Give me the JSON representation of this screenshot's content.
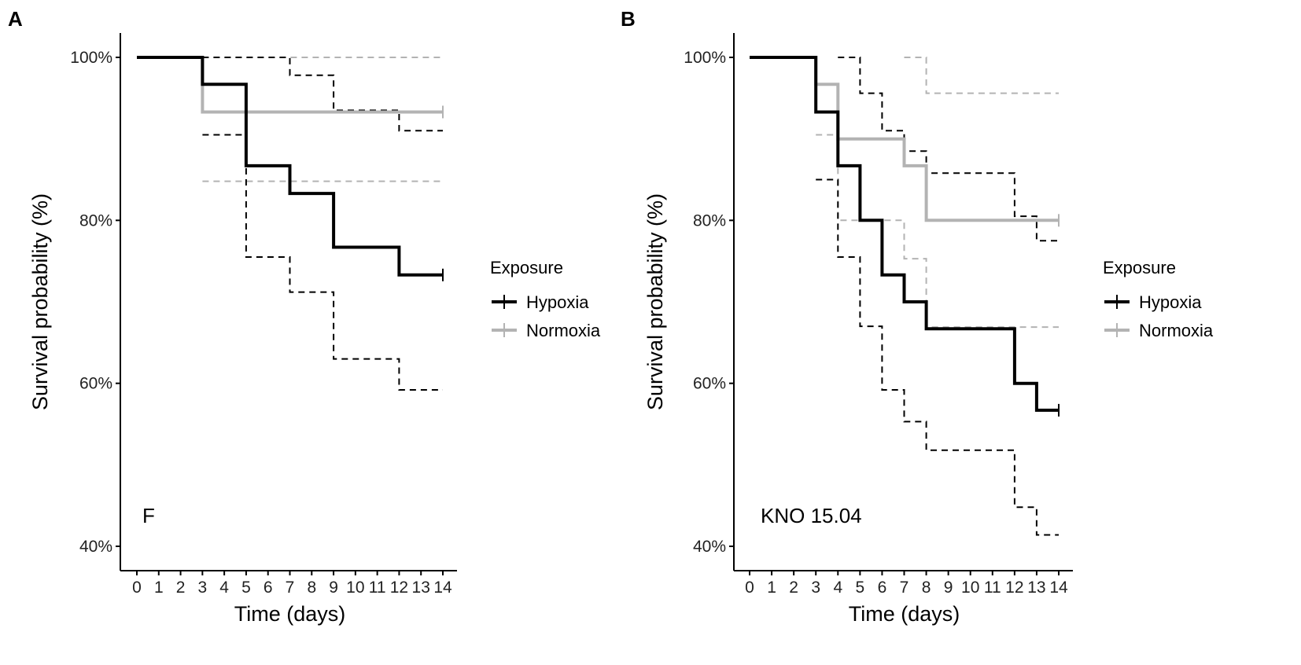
{
  "figure": {
    "colors": {
      "hypoxia": "#000000",
      "normoxia": "#b3b3b3",
      "axis": "#000000",
      "background": "#ffffff"
    }
  },
  "chart_data": [
    {
      "panel": "A",
      "type": "line",
      "subtype": "kaplan-meier step",
      "annotation": "F",
      "xlabel": "Time (days)",
      "ylabel": "Survival probability (%)",
      "xlim": [
        0,
        14
      ],
      "ylim": [
        40,
        100
      ],
      "xticks": [
        0,
        1,
        2,
        3,
        4,
        5,
        6,
        7,
        8,
        9,
        10,
        11,
        12,
        13,
        14
      ],
      "yticks": [
        40,
        60,
        80,
        100
      ],
      "ytick_labels": [
        "40%",
        "60%",
        "80%",
        "100%"
      ],
      "grid": false,
      "legend": {
        "title": "Exposure",
        "position": "right",
        "entries": [
          "Hypoxia",
          "Normoxia"
        ]
      },
      "series": [
        {
          "name": "Hypoxia",
          "color_key": "hypoxia",
          "estimate": [
            [
              0,
              100
            ],
            [
              3,
              100
            ],
            [
              3,
              96.7
            ],
            [
              5,
              96.7
            ],
            [
              5,
              86.7
            ],
            [
              7,
              86.7
            ],
            [
              7,
              83.3
            ],
            [
              9,
              83.3
            ],
            [
              9,
              76.7
            ],
            [
              12,
              76.7
            ],
            [
              12,
              73.3
            ],
            [
              14,
              73.3
            ]
          ],
          "ci_upper": [
            [
              3,
              100
            ],
            [
              7,
              100
            ],
            [
              7,
              97.8
            ],
            [
              9,
              97.8
            ],
            [
              9,
              93.5
            ],
            [
              12,
              93.5
            ],
            [
              12,
              91.0
            ],
            [
              14,
              91.0
            ]
          ],
          "ci_lower": [
            [
              3,
              90.5
            ],
            [
              5,
              90.5
            ],
            [
              5,
              75.5
            ],
            [
              7,
              75.5
            ],
            [
              7,
              71.2
            ],
            [
              9,
              71.2
            ],
            [
              9,
              63.0
            ],
            [
              12,
              63.0
            ],
            [
              12,
              59.2
            ],
            [
              14,
              59.2
            ]
          ],
          "censor": [
            14,
            73.3
          ]
        },
        {
          "name": "Normoxia",
          "color_key": "normoxia",
          "estimate": [
            [
              0,
              100
            ],
            [
              3,
              100
            ],
            [
              3,
              93.3
            ],
            [
              14,
              93.3
            ]
          ],
          "ci_upper": [
            [
              3,
              100
            ],
            [
              14,
              100
            ]
          ],
          "ci_lower": [
            [
              3,
              84.8
            ],
            [
              14,
              84.8
            ]
          ],
          "censor": [
            14,
            93.3
          ]
        }
      ]
    },
    {
      "panel": "B",
      "type": "line",
      "subtype": "kaplan-meier step",
      "annotation": "KNO 15.04",
      "xlabel": "Time (days)",
      "ylabel": "Survival probability (%)",
      "xlim": [
        0,
        14
      ],
      "ylim": [
        40,
        100
      ],
      "xticks": [
        0,
        1,
        2,
        3,
        4,
        5,
        6,
        7,
        8,
        9,
        10,
        11,
        12,
        13,
        14
      ],
      "yticks": [
        40,
        60,
        80,
        100
      ],
      "ytick_labels": [
        "40%",
        "60%",
        "80%",
        "100%"
      ],
      "grid": false,
      "legend": {
        "title": "Exposure",
        "position": "right",
        "entries": [
          "Hypoxia",
          "Normoxia"
        ]
      },
      "series": [
        {
          "name": "Hypoxia",
          "color_key": "hypoxia",
          "estimate": [
            [
              0,
              100
            ],
            [
              3,
              100
            ],
            [
              3,
              93.3
            ],
            [
              4,
              93.3
            ],
            [
              4,
              86.7
            ],
            [
              5,
              86.7
            ],
            [
              5,
              80.0
            ],
            [
              6,
              80.0
            ],
            [
              6,
              73.3
            ],
            [
              7,
              73.3
            ],
            [
              7,
              70.0
            ],
            [
              8,
              70.0
            ],
            [
              8,
              66.7
            ],
            [
              12,
              66.7
            ],
            [
              12,
              60.0
            ],
            [
              13,
              60.0
            ],
            [
              13,
              56.7
            ],
            [
              14,
              56.7
            ]
          ],
          "ci_upper": [
            [
              4,
              100
            ],
            [
              5,
              100
            ],
            [
              5,
              95.6
            ],
            [
              6,
              95.6
            ],
            [
              6,
              91.0
            ],
            [
              7,
              91.0
            ],
            [
              7,
              88.5
            ],
            [
              8,
              88.5
            ],
            [
              8,
              85.8
            ],
            [
              12,
              85.8
            ],
            [
              12,
              80.5
            ],
            [
              13,
              80.5
            ],
            [
              13,
              77.5
            ],
            [
              14,
              77.5
            ]
          ],
          "ci_lower": [
            [
              3,
              85.0
            ],
            [
              4,
              85.0
            ],
            [
              4,
              75.5
            ],
            [
              5,
              75.5
            ],
            [
              5,
              67.0
            ],
            [
              6,
              67.0
            ],
            [
              6,
              59.2
            ],
            [
              7,
              59.2
            ],
            [
              7,
              55.3
            ],
            [
              8,
              55.3
            ],
            [
              8,
              51.8
            ],
            [
              12,
              51.8
            ],
            [
              12,
              44.8
            ],
            [
              13,
              44.8
            ],
            [
              13,
              41.4
            ],
            [
              14,
              41.4
            ]
          ],
          "censor": [
            14,
            56.7
          ]
        },
        {
          "name": "Normoxia",
          "color_key": "normoxia",
          "estimate": [
            [
              0,
              100
            ],
            [
              3,
              100
            ],
            [
              3,
              96.7
            ],
            [
              4,
              96.7
            ],
            [
              4,
              90.0
            ],
            [
              7,
              90.0
            ],
            [
              7,
              86.7
            ],
            [
              8,
              86.7
            ],
            [
              8,
              80.0
            ],
            [
              14,
              80.0
            ]
          ],
          "ci_upper": [
            [
              7,
              100
            ],
            [
              8,
              100
            ],
            [
              8,
              95.6
            ],
            [
              14,
              95.6
            ]
          ],
          "ci_lower": [
            [
              3,
              90.5
            ],
            [
              4,
              90.5
            ],
            [
              4,
              80.0
            ],
            [
              7,
              80.0
            ],
            [
              7,
              75.3
            ],
            [
              8,
              75.3
            ],
            [
              8,
              66.9
            ],
            [
              14,
              66.9
            ]
          ],
          "censor": [
            14,
            80.0
          ]
        }
      ]
    }
  ]
}
